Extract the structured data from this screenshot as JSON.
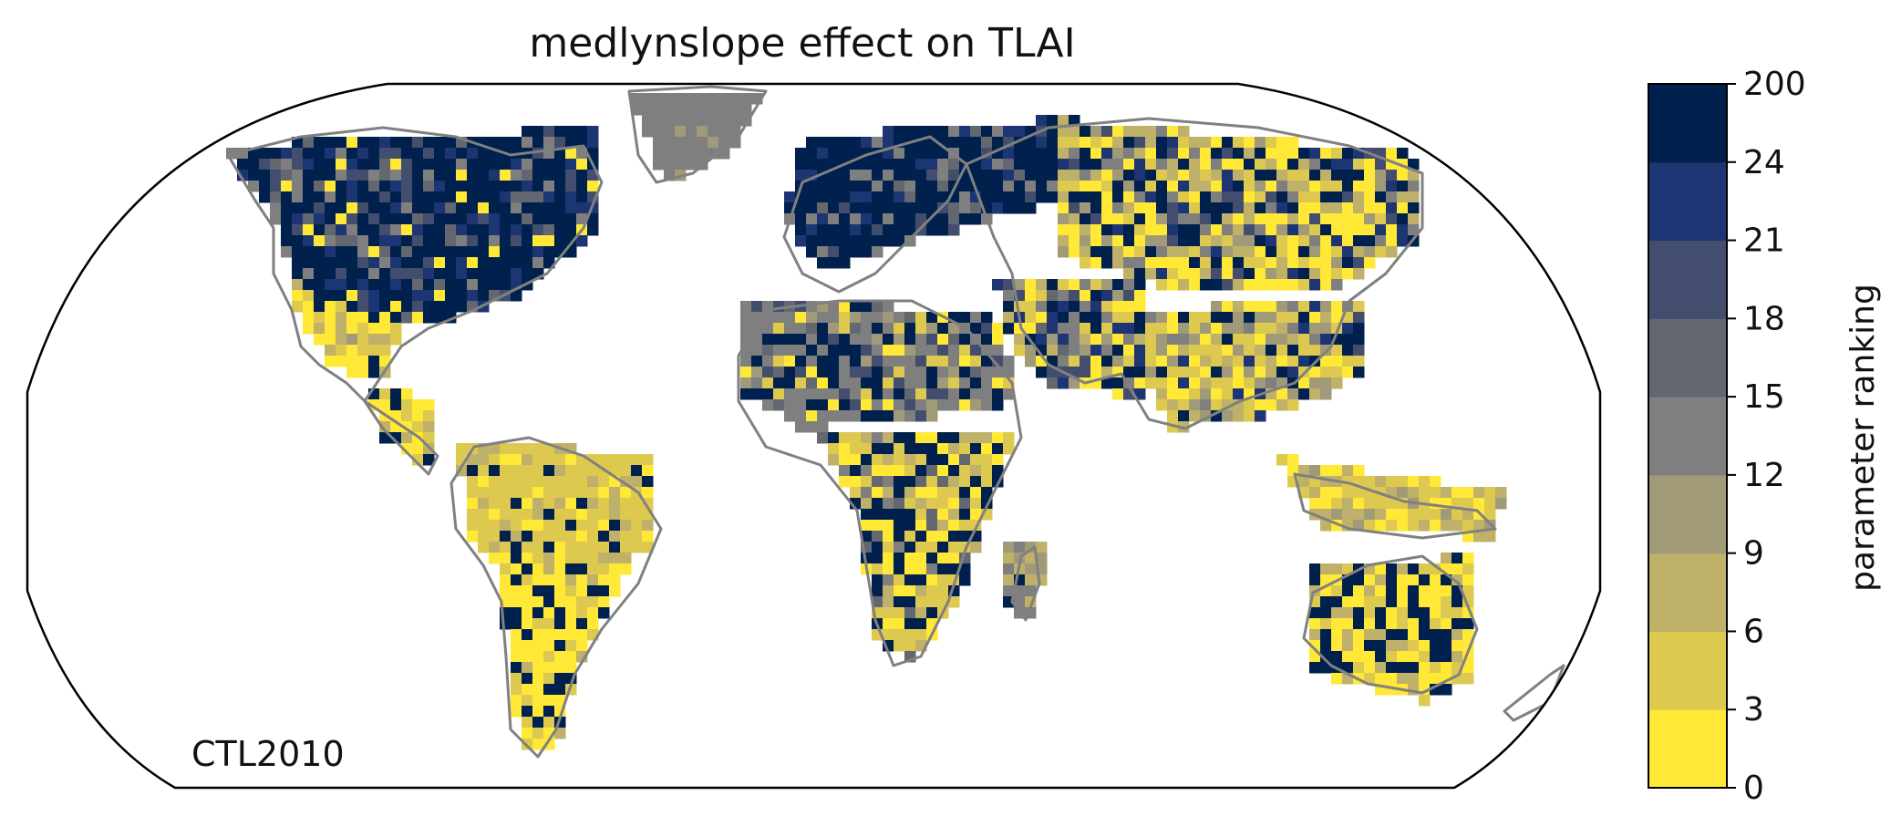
{
  "title": "medlynslope effect on TLAI",
  "corner_label": "CTL2010",
  "colorbar": {
    "label": "parameter ranking",
    "tick_labels": [
      "0",
      "3",
      "6",
      "9",
      "12",
      "15",
      "18",
      "21",
      "24",
      "200"
    ],
    "colors": [
      "#ffe836",
      "#ddc950",
      "#bfb06a",
      "#a09a78",
      "#7f7f7f",
      "#63676f",
      "#434e6e",
      "#1d3572",
      "#00204d"
    ]
  },
  "chart_data": {
    "type": "heatmap",
    "projection": "Robinson",
    "title": "medlynslope effect on TLAI",
    "colorbar_label": "parameter ranking",
    "bin_edges": [
      0,
      3,
      6,
      9,
      12,
      15,
      18,
      21,
      24,
      200
    ]
  }
}
